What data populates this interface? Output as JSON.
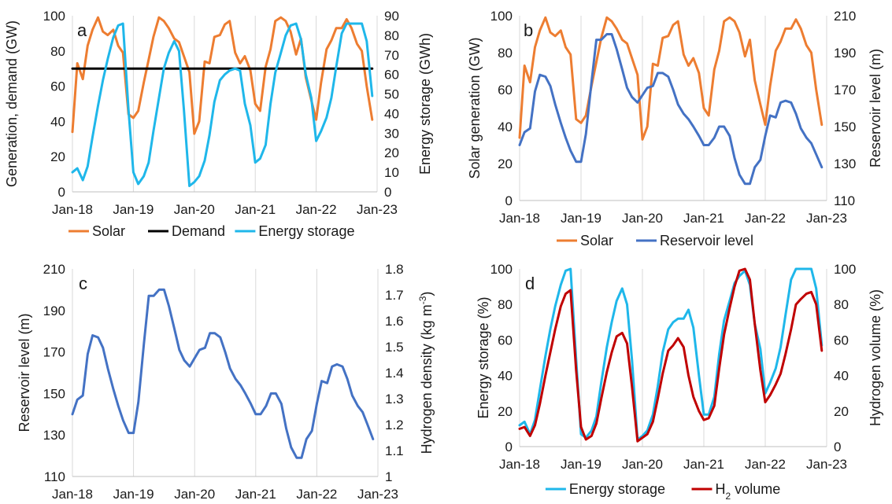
{
  "chart_data": [
    {
      "panel": "a",
      "type": "line",
      "x_ticks": [
        "Jan-18",
        "Jan-19",
        "Jan-20",
        "Jan-21",
        "Jan-22",
        "Jan-23"
      ],
      "ylabel_left": "Generation, demand (GW)",
      "ylabel_right": "Energy storage (GWh)",
      "ylim_left": [
        0,
        100
      ],
      "yticks_left": [
        0,
        20,
        40,
        60,
        80,
        100
      ],
      "ylim_right": [
        0,
        90
      ],
      "yticks_right": [
        0,
        10,
        20,
        30,
        40,
        50,
        60,
        70,
        80,
        90
      ],
      "grid": "vertical",
      "legend_position": "bottom",
      "series": [
        {
          "name": "Solar",
          "axis": "left",
          "color": "#ed7d31",
          "x": [
            2018.0,
            2018.08,
            2018.17,
            2018.25,
            2018.33,
            2018.42,
            2018.5,
            2018.58,
            2018.67,
            2018.75,
            2018.83,
            2018.92,
            2019.0,
            2019.08,
            2019.17,
            2019.25,
            2019.33,
            2019.42,
            2019.5,
            2019.58,
            2019.67,
            2019.75,
            2019.83,
            2019.92,
            2020.0,
            2020.08,
            2020.17,
            2020.25,
            2020.33,
            2020.42,
            2020.5,
            2020.58,
            2020.67,
            2020.75,
            2020.83,
            2020.92,
            2021.0,
            2021.08,
            2021.17,
            2021.25,
            2021.33,
            2021.42,
            2021.5,
            2021.58,
            2021.67,
            2021.75,
            2021.83,
            2021.92,
            2022.0,
            2022.08,
            2022.17,
            2022.25,
            2022.33,
            2022.42,
            2022.5,
            2022.58,
            2022.67,
            2022.75,
            2022.83,
            2022.92
          ],
          "y": [
            34,
            73,
            64,
            83,
            92,
            99,
            91,
            89,
            92,
            83,
            79,
            44,
            42,
            46,
            62,
            75,
            88,
            99,
            97,
            93,
            87,
            85,
            77,
            68,
            33,
            40,
            74,
            73,
            88,
            89,
            95,
            97,
            79,
            73,
            77,
            69,
            50,
            46,
            71,
            81,
            97,
            99,
            97,
            91,
            78,
            87,
            65,
            52,
            41,
            62,
            81,
            86,
            93,
            93,
            98,
            93,
            84,
            80,
            60,
            41
          ]
        },
        {
          "name": "Demand",
          "axis": "left",
          "color": "#000000",
          "x": [
            2018.0,
            2022.92
          ],
          "y": [
            70,
            70
          ]
        },
        {
          "name": "Energy storage",
          "axis": "right",
          "color": "#1fb7ea",
          "x": [
            2018.0,
            2018.08,
            2018.17,
            2018.25,
            2018.33,
            2018.42,
            2018.5,
            2018.58,
            2018.67,
            2018.75,
            2018.83,
            2018.92,
            2019.0,
            2019.08,
            2019.17,
            2019.25,
            2019.33,
            2019.42,
            2019.5,
            2019.58,
            2019.67,
            2019.75,
            2019.83,
            2019.92,
            2020.0,
            2020.08,
            2020.17,
            2020.25,
            2020.33,
            2020.42,
            2020.5,
            2020.58,
            2020.67,
            2020.75,
            2020.83,
            2020.92,
            2021.0,
            2021.08,
            2021.17,
            2021.25,
            2021.33,
            2021.42,
            2021.5,
            2021.58,
            2021.67,
            2021.75,
            2021.83,
            2021.92,
            2022.0,
            2022.08,
            2022.17,
            2022.25,
            2022.33,
            2022.42,
            2022.5,
            2022.58,
            2022.67,
            2022.75,
            2022.83,
            2022.92
          ],
          "y": [
            10,
            12,
            6,
            13,
            28,
            44,
            57,
            68,
            79,
            85,
            86,
            42,
            10,
            4,
            8,
            15,
            31,
            48,
            63,
            71,
            77,
            72,
            42,
            3,
            5,
            8,
            16,
            29,
            46,
            57,
            60,
            62,
            63,
            62,
            45,
            34,
            15,
            17,
            24,
            45,
            61,
            71,
            80,
            85,
            86,
            78,
            60,
            48,
            26,
            31,
            38,
            48,
            64,
            81,
            86,
            86,
            86,
            86,
            77,
            49
          ]
        }
      ]
    },
    {
      "panel": "b",
      "type": "line",
      "x_ticks": [
        "Jan-18",
        "Jan-19",
        "Jan-20",
        "Jan-21",
        "Jan-22",
        "Jan-23"
      ],
      "ylabel_left": "Solar generation (GW)",
      "ylabel_right": "Reservoir level (m)",
      "ylim_left": [
        0,
        100
      ],
      "yticks_left": [
        0,
        20,
        40,
        60,
        80,
        100
      ],
      "ylim_right": [
        110,
        210
      ],
      "yticks_right": [
        110,
        130,
        150,
        170,
        190,
        210
      ],
      "grid": "vertical",
      "legend_position": "bottom",
      "series": [
        {
          "name": "Solar",
          "axis": "left",
          "color": "#ed7d31",
          "x": [
            2018.0,
            2018.08,
            2018.17,
            2018.25,
            2018.33,
            2018.42,
            2018.5,
            2018.58,
            2018.67,
            2018.75,
            2018.83,
            2018.92,
            2019.0,
            2019.08,
            2019.17,
            2019.25,
            2019.33,
            2019.42,
            2019.5,
            2019.58,
            2019.67,
            2019.75,
            2019.83,
            2019.92,
            2020.0,
            2020.08,
            2020.17,
            2020.25,
            2020.33,
            2020.42,
            2020.5,
            2020.58,
            2020.67,
            2020.75,
            2020.83,
            2020.92,
            2021.0,
            2021.08,
            2021.17,
            2021.25,
            2021.33,
            2021.42,
            2021.5,
            2021.58,
            2021.67,
            2021.75,
            2021.83,
            2021.92,
            2022.0,
            2022.08,
            2022.17,
            2022.25,
            2022.33,
            2022.42,
            2022.5,
            2022.58,
            2022.67,
            2022.75,
            2022.83,
            2022.92
          ],
          "y": [
            34,
            73,
            64,
            83,
            92,
            99,
            91,
            89,
            92,
            83,
            79,
            44,
            42,
            46,
            62,
            75,
            88,
            99,
            97,
            93,
            87,
            85,
            77,
            68,
            33,
            40,
            74,
            73,
            88,
            89,
            95,
            97,
            79,
            73,
            77,
            69,
            50,
            46,
            71,
            81,
            97,
            99,
            97,
            91,
            78,
            87,
            65,
            52,
            41,
            62,
            81,
            86,
            93,
            93,
            98,
            93,
            84,
            80,
            60,
            41
          ]
        },
        {
          "name": "Reservoir level",
          "axis": "right",
          "color": "#4472c4",
          "x": [
            2018.0,
            2018.08,
            2018.17,
            2018.25,
            2018.33,
            2018.42,
            2018.5,
            2018.58,
            2018.67,
            2018.75,
            2018.83,
            2018.92,
            2019.0,
            2019.08,
            2019.17,
            2019.25,
            2019.33,
            2019.42,
            2019.5,
            2019.58,
            2019.67,
            2019.75,
            2019.83,
            2019.92,
            2020.0,
            2020.08,
            2020.17,
            2020.25,
            2020.33,
            2020.42,
            2020.5,
            2020.58,
            2020.67,
            2020.75,
            2020.83,
            2020.92,
            2021.0,
            2021.08,
            2021.17,
            2021.25,
            2021.33,
            2021.42,
            2021.5,
            2021.58,
            2021.67,
            2021.75,
            2021.83,
            2021.92,
            2022.0,
            2022.08,
            2022.17,
            2022.25,
            2022.33,
            2022.42,
            2022.5,
            2022.58,
            2022.67,
            2022.75,
            2022.83,
            2022.92
          ],
          "y": [
            140,
            147,
            149,
            169,
            178,
            177,
            172,
            162,
            152,
            144,
            137,
            131,
            131,
            146,
            174,
            197,
            197,
            200,
            200,
            192,
            181,
            171,
            166,
            163,
            167,
            171,
            172,
            179,
            179,
            177,
            170,
            162,
            157,
            154,
            150,
            145,
            140,
            140,
            144,
            150,
            150,
            145,
            133,
            124,
            119,
            119,
            128,
            132,
            145,
            156,
            155,
            163,
            164,
            163,
            157,
            149,
            144,
            141,
            135,
            128
          ]
        }
      ]
    },
    {
      "panel": "c",
      "type": "line",
      "x_ticks": [
        "Jan-18",
        "Jan-19",
        "Jan-20",
        "Jan-21",
        "Jan-22",
        "Jan-23"
      ],
      "ylabel_left": "Reservoir level (m)",
      "ylabel_right": "Hydrogen density (kg m",
      "ylabel_right_sup": "-3",
      "ylabel_right_end": ")",
      "ylim_left": [
        110,
        210
      ],
      "yticks_left": [
        110,
        130,
        150,
        170,
        190,
        210
      ],
      "ylim_right": [
        1.0,
        1.8
      ],
      "yticks_right": [
        "1",
        "1.1",
        "1.2",
        "1.3",
        "1.4",
        "1.5",
        "1.6",
        "1.7",
        "1.8"
      ],
      "grid": "vertical",
      "series": [
        {
          "axis": "left",
          "color": "#4472c4",
          "x": [
            2018.0,
            2018.08,
            2018.17,
            2018.25,
            2018.33,
            2018.42,
            2018.5,
            2018.58,
            2018.67,
            2018.75,
            2018.83,
            2018.92,
            2019.0,
            2019.08,
            2019.17,
            2019.25,
            2019.33,
            2019.42,
            2019.5,
            2019.58,
            2019.67,
            2019.75,
            2019.83,
            2019.92,
            2020.0,
            2020.08,
            2020.17,
            2020.25,
            2020.33,
            2020.42,
            2020.5,
            2020.58,
            2020.67,
            2020.75,
            2020.83,
            2020.92,
            2021.0,
            2021.08,
            2021.17,
            2021.25,
            2021.33,
            2021.42,
            2021.5,
            2021.58,
            2021.67,
            2021.75,
            2021.83,
            2021.92,
            2022.0,
            2022.08,
            2022.17,
            2022.25,
            2022.33,
            2022.42,
            2022.5,
            2022.58,
            2022.67,
            2022.75,
            2022.83,
            2022.92
          ],
          "y": [
            140,
            147,
            149,
            169,
            178,
            177,
            172,
            162,
            152,
            144,
            137,
            131,
            131,
            146,
            174,
            197,
            197,
            200,
            200,
            192,
            181,
            171,
            166,
            163,
            167,
            171,
            172,
            179,
            179,
            177,
            170,
            162,
            157,
            154,
            150,
            145,
            140,
            140,
            144,
            150,
            150,
            145,
            133,
            124,
            119,
            119,
            128,
            132,
            145,
            156,
            155,
            163,
            164,
            163,
            157,
            149,
            144,
            141,
            135,
            128
          ]
        }
      ]
    },
    {
      "panel": "d",
      "type": "line",
      "x_ticks": [
        "Jan-18",
        "Jan-19",
        "Jan-20",
        "Jan-21",
        "Jan-22",
        "Jan-23"
      ],
      "ylabel_left": "Energy storage (%)",
      "ylabel_right": "Hydrogen volume (%)",
      "ylim_left": [
        0,
        100
      ],
      "yticks_left": [
        0,
        20,
        40,
        60,
        80,
        100
      ],
      "ylim_right": [
        0,
        100
      ],
      "yticks_right": [
        0,
        20,
        40,
        60,
        80,
        100
      ],
      "grid": "vertical",
      "legend_position": "bottom",
      "series": [
        {
          "name": "Energy storage",
          "axis": "left",
          "color": "#1fb7ea",
          "x": [
            2018.0,
            2018.08,
            2018.17,
            2018.25,
            2018.33,
            2018.42,
            2018.5,
            2018.58,
            2018.67,
            2018.75,
            2018.83,
            2018.92,
            2019.0,
            2019.08,
            2019.17,
            2019.25,
            2019.33,
            2019.42,
            2019.5,
            2019.58,
            2019.67,
            2019.75,
            2019.83,
            2019.92,
            2020.0,
            2020.08,
            2020.17,
            2020.25,
            2020.33,
            2020.42,
            2020.5,
            2020.58,
            2020.67,
            2020.75,
            2020.83,
            2020.92,
            2021.0,
            2021.08,
            2021.17,
            2021.25,
            2021.33,
            2021.42,
            2021.5,
            2021.58,
            2021.67,
            2021.75,
            2021.83,
            2021.92,
            2022.0,
            2022.08,
            2022.17,
            2022.25,
            2022.33,
            2022.42,
            2022.5,
            2022.58,
            2022.67,
            2022.75,
            2022.83,
            2022.92
          ],
          "y": [
            12,
            14,
            7,
            15,
            32,
            51,
            66,
            79,
            91,
            99,
            100,
            49,
            7,
            5,
            9,
            17,
            36,
            56,
            70,
            82,
            89,
            80,
            49,
            4,
            6,
            9,
            18,
            34,
            53,
            66,
            70,
            72,
            72,
            77,
            67,
            40,
            18,
            18,
            28,
            52,
            71,
            82,
            92,
            96,
            99,
            91,
            69,
            55,
            30,
            36,
            44,
            56,
            74,
            94,
            100,
            100,
            100,
            100,
            89,
            57
          ]
        },
        {
          "name": "H2 volume",
          "name_base": "H",
          "name_sub": "2",
          "name_end": " volume",
          "axis": "right",
          "color": "#c00000",
          "x": [
            2018.0,
            2018.08,
            2018.17,
            2018.25,
            2018.33,
            2018.42,
            2018.5,
            2018.58,
            2018.67,
            2018.75,
            2018.83,
            2018.92,
            2019.0,
            2019.08,
            2019.17,
            2019.25,
            2019.33,
            2019.42,
            2019.5,
            2019.58,
            2019.67,
            2019.75,
            2019.83,
            2019.92,
            2020.0,
            2020.08,
            2020.17,
            2020.25,
            2020.33,
            2020.42,
            2020.5,
            2020.58,
            2020.67,
            2020.75,
            2020.83,
            2020.92,
            2021.0,
            2021.08,
            2021.17,
            2021.25,
            2021.33,
            2021.42,
            2021.5,
            2021.58,
            2021.67,
            2021.75,
            2021.83,
            2021.92,
            2022.0,
            2022.08,
            2022.17,
            2022.25,
            2022.33,
            2022.42,
            2022.5,
            2022.58,
            2022.67,
            2022.75,
            2022.83,
            2022.92
          ],
          "y": [
            10,
            11,
            6,
            12,
            24,
            40,
            53,
            66,
            79,
            86,
            88,
            43,
            11,
            4,
            6,
            13,
            27,
            42,
            53,
            62,
            64,
            58,
            34,
            3,
            5,
            7,
            14,
            27,
            41,
            54,
            57,
            61,
            56,
            40,
            28,
            20,
            15,
            16,
            23,
            44,
            63,
            78,
            90,
            99,
            100,
            94,
            69,
            43,
            25,
            29,
            35,
            41,
            52,
            66,
            80,
            83,
            86,
            87,
            80,
            54
          ]
        }
      ]
    }
  ]
}
